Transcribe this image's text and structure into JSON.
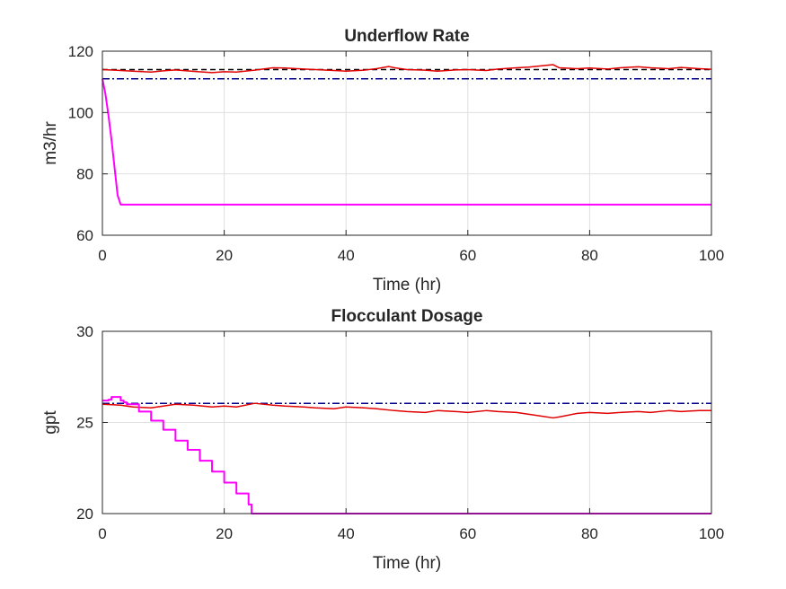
{
  "chart_data": [
    {
      "type": "line",
      "title": "Underflow Rate",
      "xlabel": "Time (hr)",
      "ylabel": "m3/hr",
      "xlim": [
        0,
        100
      ],
      "ylim": [
        60,
        120
      ],
      "xticks": [
        0,
        20,
        40,
        60,
        80,
        100
      ],
      "yticks": [
        60,
        80,
        100,
        120
      ],
      "grid": true,
      "series": [
        {
          "color": "#000000",
          "style": "dashed",
          "x": [
            0,
            100
          ],
          "y": [
            114,
            114
          ]
        },
        {
          "color": "#00008b",
          "style": "dashdot",
          "x": [
            0,
            100
          ],
          "y": [
            111,
            111
          ]
        },
        {
          "color": "#e00000",
          "style": "solid",
          "x": [
            0,
            2,
            5,
            8,
            10,
            12,
            15,
            18,
            20,
            22,
            25,
            28,
            30,
            33,
            35,
            38,
            40,
            43,
            45,
            47,
            48,
            50,
            53,
            55,
            58,
            60,
            63,
            65,
            68,
            70,
            72,
            74,
            75,
            78,
            80,
            83,
            85,
            88,
            90,
            93,
            95,
            98,
            100
          ],
          "y": [
            114,
            113.8,
            113.5,
            113.2,
            113.6,
            113.9,
            113.4,
            113.0,
            113.3,
            113.2,
            113.8,
            114.6,
            114.5,
            114.2,
            114.0,
            113.7,
            113.5,
            113.8,
            114.3,
            115.0,
            114.6,
            114.0,
            113.8,
            113.5,
            113.9,
            114.0,
            113.7,
            114.2,
            114.6,
            114.8,
            115.2,
            115.6,
            114.6,
            114.3,
            114.5,
            114.2,
            114.6,
            114.9,
            114.6,
            114.3,
            114.7,
            114.3,
            114.1
          ]
        },
        {
          "color": "#ff00ff",
          "style": "solid",
          "x": [
            0,
            0.5,
            1.0,
            1.5,
            2.0,
            2.5,
            3.0,
            100
          ],
          "y": [
            111,
            106,
            99,
            91,
            82,
            73,
            70,
            70
          ]
        }
      ]
    },
    {
      "type": "line",
      "title": "Flocculant Dosage",
      "xlabel": "Time (hr)",
      "ylabel": "gpt",
      "xlim": [
        0,
        100
      ],
      "ylim": [
        20,
        30
      ],
      "xticks": [
        0,
        20,
        40,
        60,
        80,
        100
      ],
      "yticks": [
        20,
        25,
        30
      ],
      "grid": true,
      "series": [
        {
          "color": "#00008b",
          "style": "dashdot",
          "x": [
            0,
            100
          ],
          "y": [
            26.05,
            26.05
          ]
        },
        {
          "color": "#e00000",
          "style": "solid",
          "x": [
            0,
            3,
            5,
            8,
            10,
            12,
            15,
            18,
            20,
            22,
            25,
            28,
            30,
            33,
            35,
            38,
            40,
            43,
            45,
            48,
            50,
            53,
            55,
            58,
            60,
            63,
            65,
            68,
            70,
            72,
            74,
            75,
            78,
            80,
            83,
            85,
            88,
            90,
            93,
            95,
            98,
            100
          ],
          "y": [
            26.0,
            25.95,
            25.85,
            25.8,
            25.9,
            26.0,
            25.95,
            25.85,
            25.9,
            25.85,
            26.05,
            25.95,
            25.9,
            25.85,
            25.8,
            25.75,
            25.85,
            25.8,
            25.75,
            25.65,
            25.6,
            25.55,
            25.65,
            25.6,
            25.55,
            25.65,
            25.6,
            25.55,
            25.45,
            25.35,
            25.25,
            25.3,
            25.5,
            25.55,
            25.5,
            25.55,
            25.6,
            25.55,
            25.65,
            25.6,
            25.65,
            25.65
          ]
        },
        {
          "color": "#ff00ff",
          "style": "step",
          "x": [
            0,
            1,
            1.5,
            2.5,
            3,
            3.5,
            4,
            6,
            8,
            10,
            12,
            14,
            16,
            18,
            20,
            22,
            24,
            24.5,
            100
          ],
          "y": [
            26.2,
            26.25,
            26.4,
            26.4,
            26.2,
            26.1,
            26.0,
            25.6,
            25.1,
            24.6,
            24.0,
            23.5,
            22.9,
            22.3,
            21.7,
            21.1,
            20.5,
            20.0,
            20.0
          ]
        }
      ]
    }
  ]
}
